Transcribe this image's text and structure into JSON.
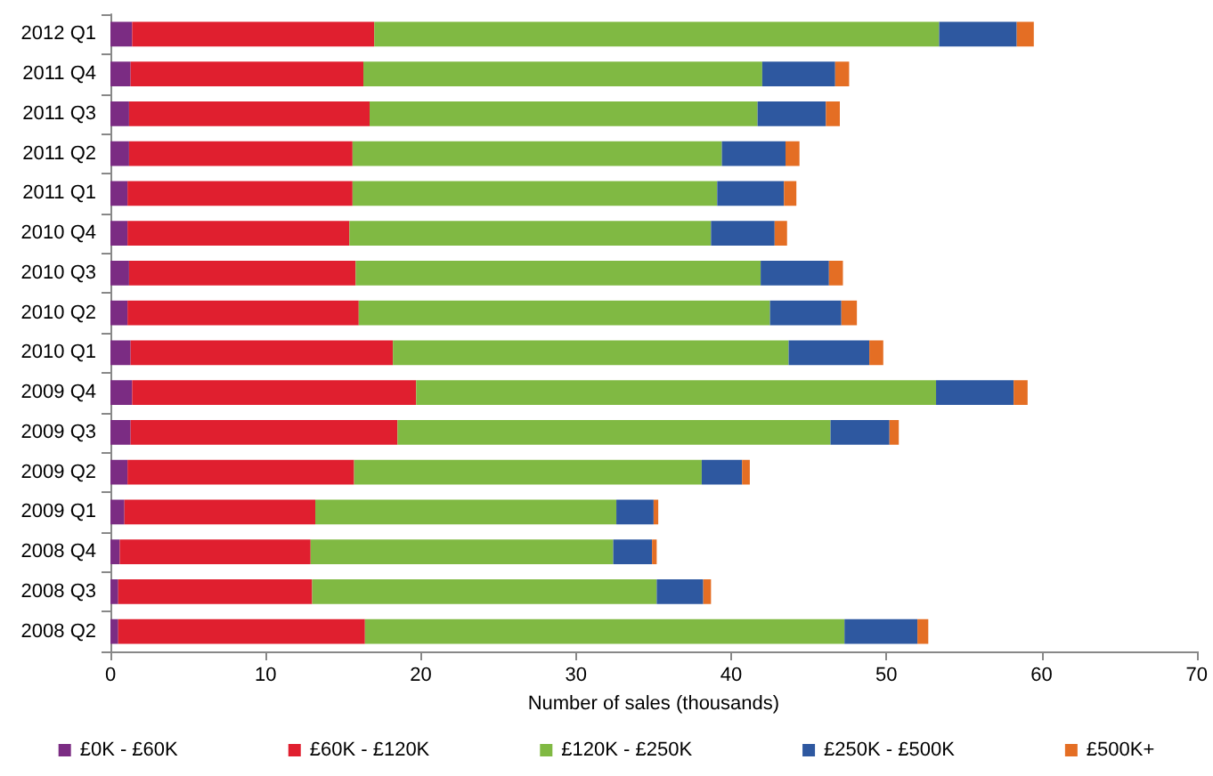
{
  "chart_data": {
    "type": "bar",
    "orientation": "horizontal",
    "stacked": true,
    "xlabel": "Number of sales (thousands)",
    "categories": [
      "2012 Q1",
      "2011 Q4",
      "2011 Q3",
      "2011 Q2",
      "2011 Q1",
      "2010 Q4",
      "2010 Q3",
      "2010 Q2",
      "2010 Q1",
      "2009 Q4",
      "2009 Q3",
      "2009 Q2",
      "2009 Q1",
      "2008 Q4",
      "2008 Q3",
      "2008 Q2"
    ],
    "series": [
      {
        "name": "£0K - £60K",
        "color": "#7b2c83",
        "values": [
          1.4,
          1.3,
          1.2,
          1.2,
          1.1,
          1.1,
          1.2,
          1.1,
          1.3,
          1.4,
          1.3,
          1.1,
          0.9,
          0.6,
          0.5,
          0.5
        ]
      },
      {
        "name": "£60K - £120K",
        "color": "#e01f2f",
        "values": [
          15.6,
          15.0,
          15.5,
          14.4,
          14.5,
          14.3,
          14.6,
          14.9,
          16.9,
          18.3,
          17.2,
          14.6,
          12.3,
          12.3,
          12.5,
          15.9
        ]
      },
      {
        "name": "£120K - £250K",
        "color": "#80b943",
        "values": [
          36.4,
          25.7,
          25.0,
          23.8,
          23.5,
          23.3,
          26.1,
          26.5,
          25.5,
          33.5,
          27.9,
          22.4,
          19.4,
          19.5,
          22.2,
          30.9
        ]
      },
      {
        "name": "£250K - £500K",
        "color": "#2e58a0",
        "values": [
          5.0,
          4.7,
          4.4,
          4.1,
          4.3,
          4.1,
          4.4,
          4.6,
          5.2,
          5.0,
          3.8,
          2.6,
          2.4,
          2.5,
          3.0,
          4.7
        ]
      },
      {
        "name": "£500K+",
        "color": "#e46e24",
        "values": [
          1.1,
          0.9,
          0.9,
          0.9,
          0.8,
          0.8,
          0.9,
          1.0,
          0.9,
          0.9,
          0.6,
          0.5,
          0.3,
          0.3,
          0.5,
          0.7
        ]
      }
    ],
    "xlim": [
      0,
      70
    ],
    "xticks": [
      0,
      10,
      20,
      30,
      40,
      50,
      60,
      70
    ],
    "grid": false,
    "legend": "bottom"
  }
}
